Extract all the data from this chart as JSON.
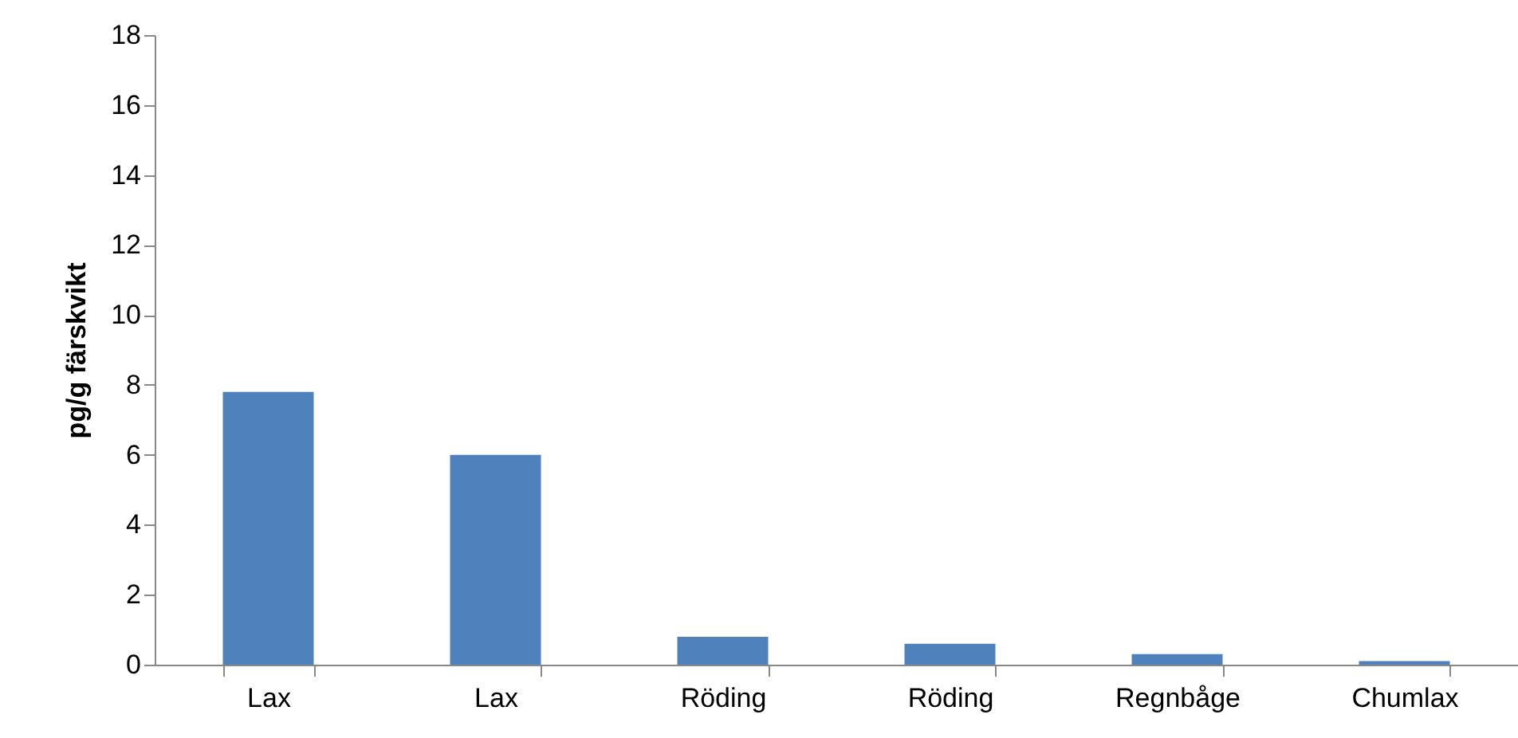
{
  "chart_data": {
    "type": "bar",
    "ylabel": "pg/g färskvikt",
    "categories": [
      "Lax",
      "Lax",
      "Röding",
      "Röding",
      "Regnbåge",
      "Chumlax"
    ],
    "values": [
      7.8,
      6.0,
      0.8,
      0.6,
      0.3,
      0.1
    ],
    "color": "#4f81bd",
    "ylim": [
      0,
      18
    ],
    "yticks": [
      0,
      2,
      4,
      6,
      8,
      10,
      12,
      14,
      16,
      18
    ],
    "grid": false
  }
}
